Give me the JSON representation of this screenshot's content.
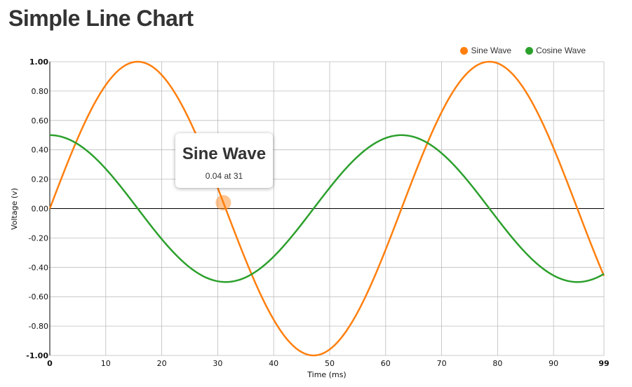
{
  "title": "Simple Line Chart",
  "colors": {
    "sine": "#ff7f0e",
    "cosine": "#2ca02c"
  },
  "tooltip": {
    "series": "Sine Wave",
    "text": "0.04 at 31"
  },
  "chart_data": {
    "type": "line",
    "title": "Simple Line Chart",
    "xlabel": "Time (ms)",
    "ylabel": "Voltage (v)",
    "xlim": [
      0,
      99
    ],
    "ylim": [
      -1,
      1
    ],
    "grid": true,
    "legend_position": "top-right",
    "x_ticks": [
      0,
      10,
      20,
      30,
      40,
      50,
      60,
      70,
      80,
      90,
      99
    ],
    "x_tick_labels": [
      "0",
      "10",
      "20",
      "30",
      "40",
      "50",
      "60",
      "70",
      "80",
      "90",
      "99"
    ],
    "y_ticks": [
      1,
      0.8,
      0.6,
      0.4,
      0.2,
      0,
      -0.2,
      -0.4,
      -0.6,
      -0.8,
      -1
    ],
    "y_tick_labels": [
      "1.00",
      "0.80",
      "0.60",
      "0.40",
      "0.20",
      "0.00",
      "-0.20",
      "-0.40",
      "-0.60",
      "-0.80",
      "-1.00"
    ],
    "series": [
      {
        "name": "Sine Wave",
        "color": "#ff7f0e",
        "function": "sin(x/10)",
        "x_range": [
          0,
          99
        ]
      },
      {
        "name": "Cosine Wave",
        "color": "#2ca02c",
        "function": "0.5*cos(x/10)",
        "x_range": [
          0,
          99
        ]
      }
    ],
    "highlighted_point": {
      "series": "Sine Wave",
      "x": 31,
      "y": 0.04
    }
  }
}
